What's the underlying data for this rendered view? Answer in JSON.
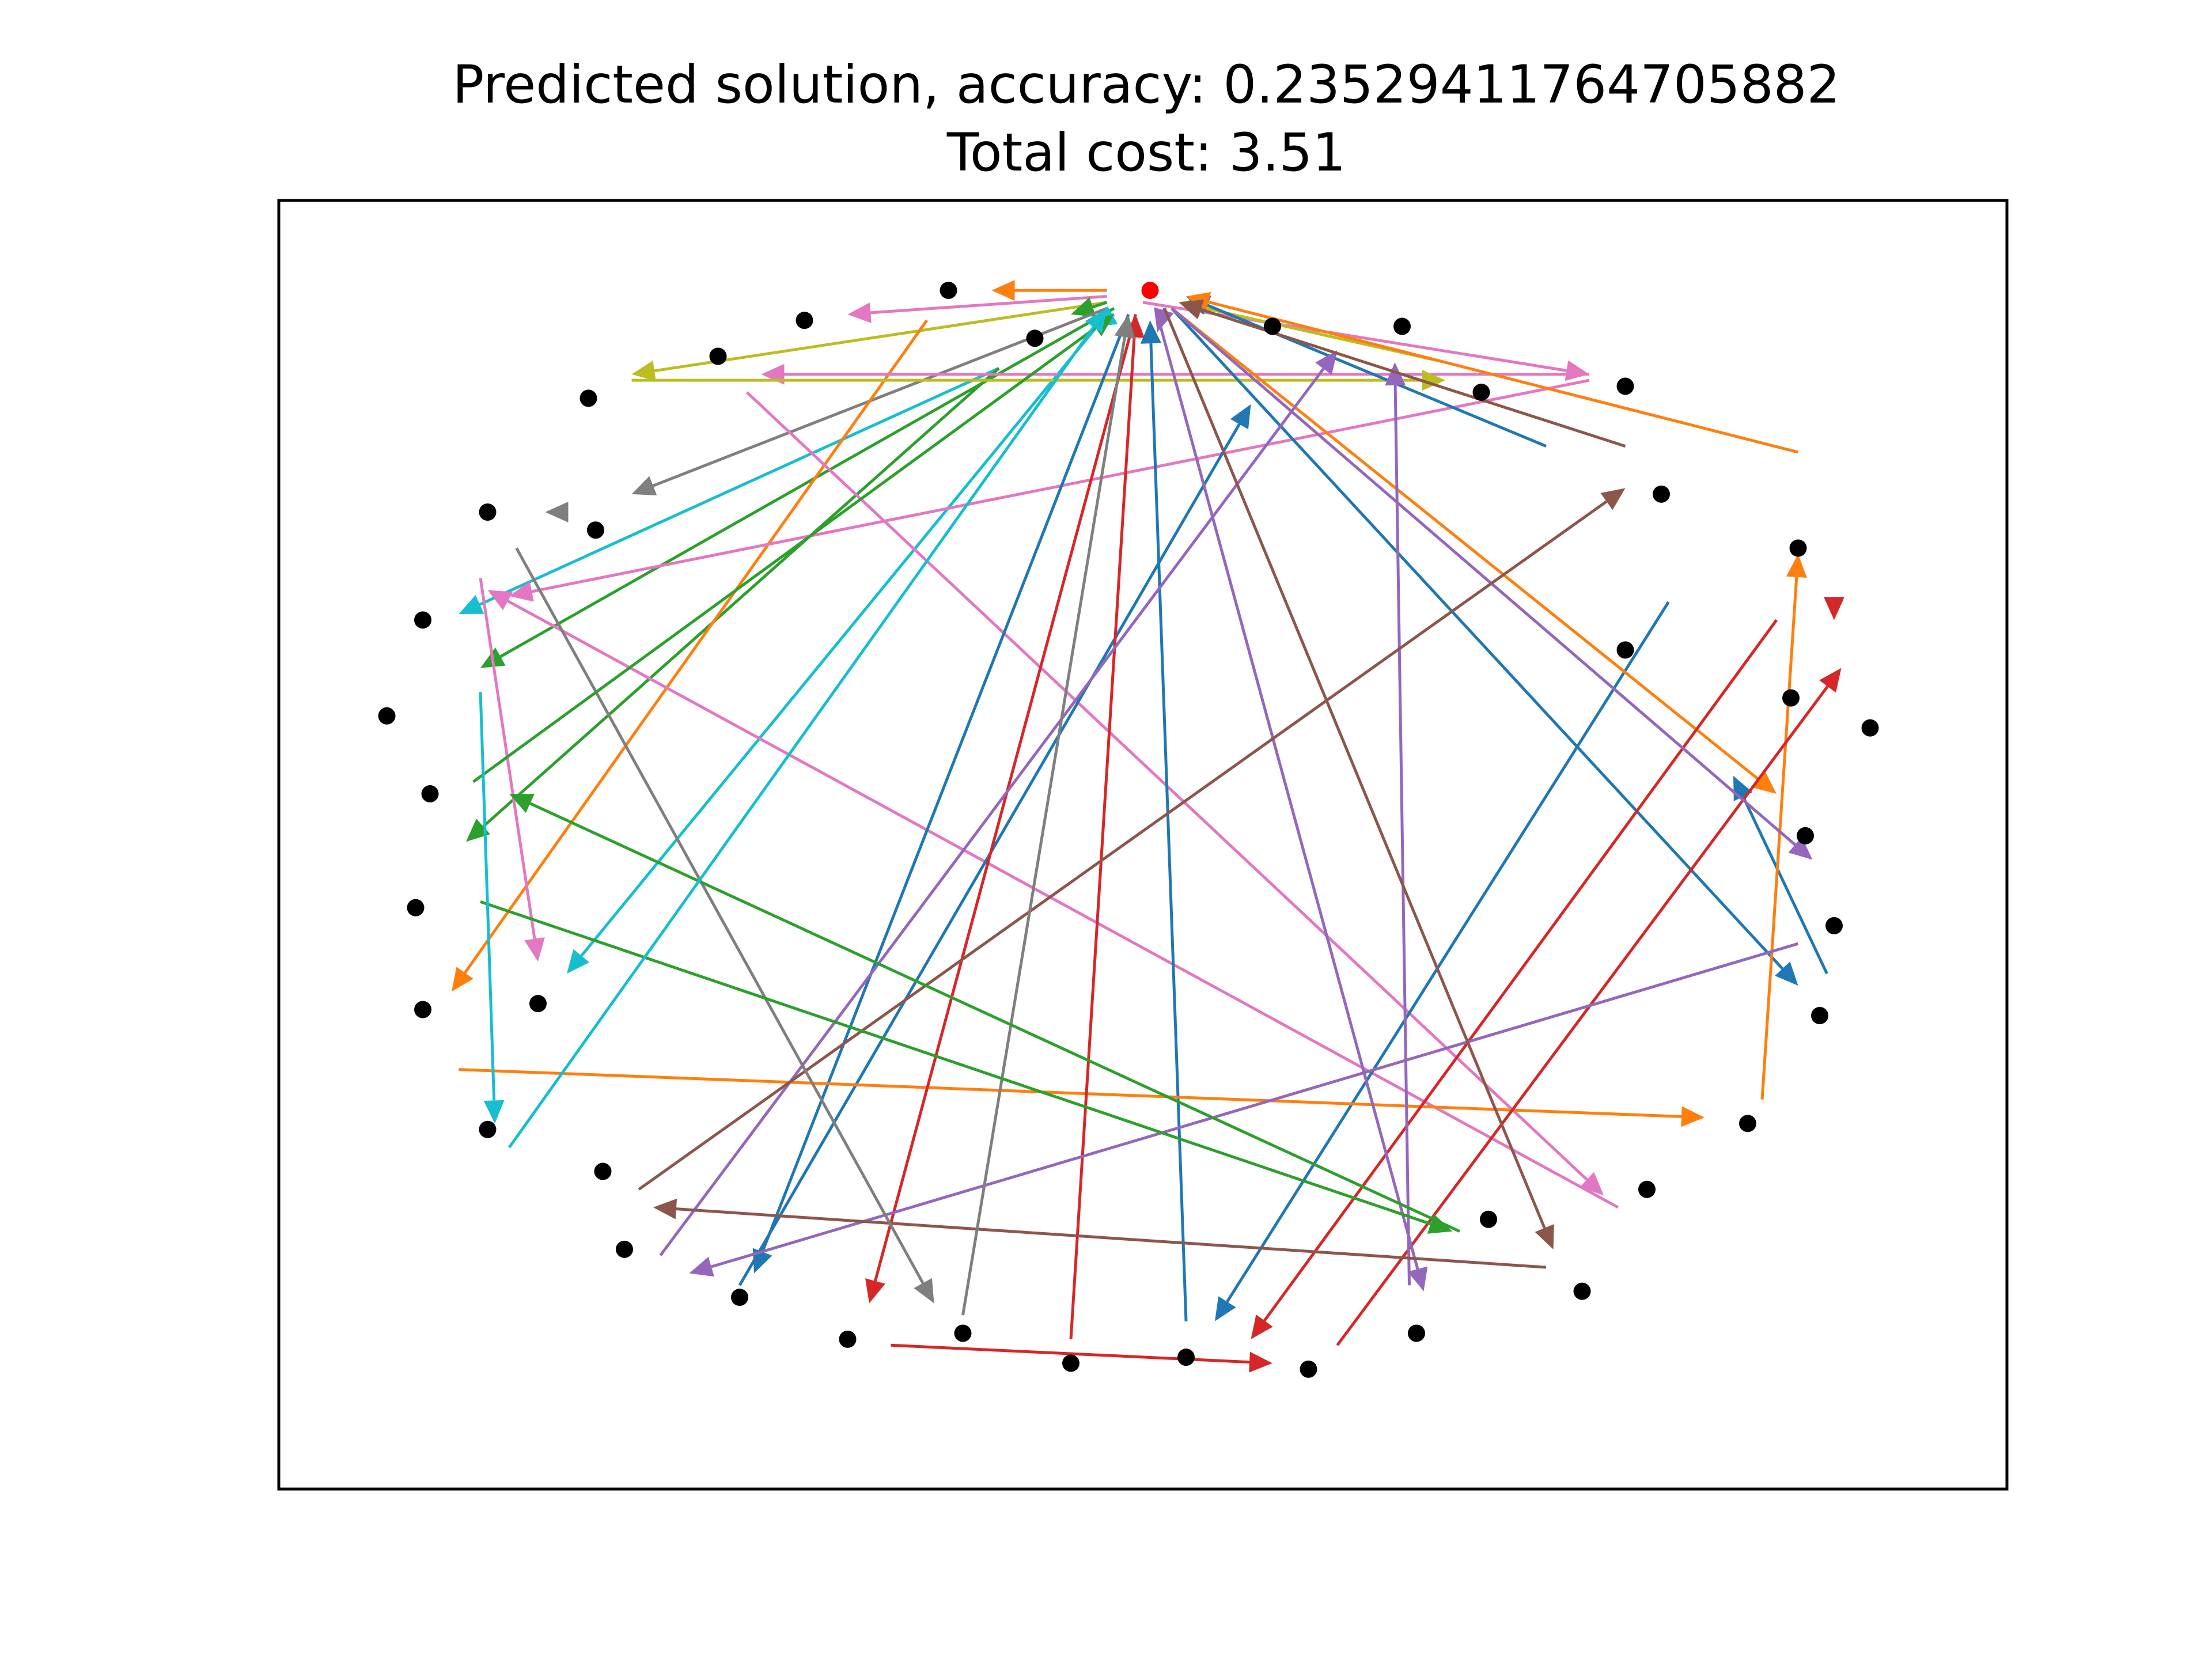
{
  "chart_data": {
    "type": "scatter",
    "title": "Predicted solution, accuracy: 0.23529411764705882",
    "subtitle": "Total cost: 3.51",
    "xlabel": "",
    "ylabel": "",
    "axes_ticks": false,
    "grid": false,
    "xlim": [
      -1.2,
      1.2
    ],
    "ylim": [
      -1.25,
      0.9
    ],
    "depot": {
      "x": 0.01,
      "y": 0.75,
      "color": "#ff0000"
    },
    "nodes": [
      {
        "x": -0.27,
        "y": 0.75
      },
      {
        "x": -0.47,
        "y": 0.7
      },
      {
        "x": -0.15,
        "y": 0.67
      },
      {
        "x": -0.59,
        "y": 0.64
      },
      {
        "x": -0.77,
        "y": 0.57
      },
      {
        "x": 0.18,
        "y": 0.69
      },
      {
        "x": 0.36,
        "y": 0.69
      },
      {
        "x": 0.47,
        "y": 0.58
      },
      {
        "x": 0.67,
        "y": 0.59
      },
      {
        "x": -0.91,
        "y": 0.38
      },
      {
        "x": -0.76,
        "y": 0.35
      },
      {
        "x": 0.72,
        "y": 0.41
      },
      {
        "x": -1.0,
        "y": 0.2
      },
      {
        "x": 0.91,
        "y": 0.32
      },
      {
        "x": 0.67,
        "y": 0.15
      },
      {
        "x": -1.05,
        "y": 0.04
      },
      {
        "x": 0.9,
        "y": 0.07
      },
      {
        "x": 1.01,
        "y": 0.02
      },
      {
        "x": -0.99,
        "y": -0.09
      },
      {
        "x": 0.92,
        "y": -0.16
      },
      {
        "x": -1.01,
        "y": -0.28
      },
      {
        "x": 0.96,
        "y": -0.31
      },
      {
        "x": -1.0,
        "y": -0.45
      },
      {
        "x": -0.84,
        "y": -0.44
      },
      {
        "x": 0.94,
        "y": -0.46
      },
      {
        "x": -0.91,
        "y": -0.65
      },
      {
        "x": 0.84,
        "y": -0.64
      },
      {
        "x": -0.75,
        "y": -0.72
      },
      {
        "x": 0.7,
        "y": -0.75
      },
      {
        "x": -0.72,
        "y": -0.85
      },
      {
        "x": 0.48,
        "y": -0.8
      },
      {
        "x": -0.56,
        "y": -0.93
      },
      {
        "x": 0.61,
        "y": -0.92
      },
      {
        "x": -0.41,
        "y": -1.0
      },
      {
        "x": 0.38,
        "y": -0.99
      },
      {
        "x": -0.25,
        "y": -0.99
      },
      {
        "x": -0.1,
        "y": -1.04
      },
      {
        "x": 0.06,
        "y": -1.03
      },
      {
        "x": 0.23,
        "y": -1.05
      }
    ],
    "routes": [
      {
        "color": "#ff7f0e",
        "x1": -0.05,
        "y1": 0.75,
        "x2": -0.21,
        "y2": 0.75
      },
      {
        "color": "#e377c2",
        "x1": -0.05,
        "y1": 0.74,
        "x2": -0.41,
        "y2": 0.71
      },
      {
        "color": "#bcbd22",
        "x1": -0.05,
        "y1": 0.73,
        "x2": -0.71,
        "y2": 0.61
      },
      {
        "color": "#2ca02c",
        "x1": -0.05,
        "y1": 0.73,
        "x2": -0.1,
        "y2": 0.71
      },
      {
        "color": "#7f7f7f",
        "x1": -0.05,
        "y1": 0.72,
        "x2": -0.71,
        "y2": 0.41
      },
      {
        "color": "#17becf",
        "x1": -0.2,
        "y1": 0.62,
        "x2": -0.95,
        "y2": 0.21
      },
      {
        "color": "#2ca02c",
        "x1": -0.2,
        "y1": 0.62,
        "x2": -0.94,
        "y2": -0.17
      },
      {
        "color": "#2ca02c",
        "x1": -0.04,
        "y1": 0.72,
        "x2": -0.92,
        "y2": 0.12
      },
      {
        "color": "#17becf",
        "x1": -0.05,
        "y1": 0.71,
        "x2": -0.8,
        "y2": -0.39
      },
      {
        "color": "#17becf",
        "x1": -0.04,
        "y1": 0.71,
        "x2": -0.07,
        "y2": 0.69
      },
      {
        "color": "#ff7f0e",
        "x1": -0.3,
        "y1": 0.7,
        "x2": -0.96,
        "y2": -0.42
      },
      {
        "color": "#e377c2",
        "x1": -0.55,
        "y1": 0.58,
        "x2": 0.64,
        "y2": -0.76
      },
      {
        "color": "#e377c2",
        "x1": -0.92,
        "y1": 0.27,
        "x2": -0.84,
        "y2": -0.37
      },
      {
        "color": "#e377c2",
        "x1": 0.62,
        "y1": 0.6,
        "x2": -0.88,
        "y2": 0.24
      },
      {
        "color": "#e377c2",
        "x1": 0.62,
        "y1": 0.61,
        "x2": -0.53,
        "y2": 0.61
      },
      {
        "color": "#e377c2",
        "x1": 0.0,
        "y1": 0.73,
        "x2": 0.62,
        "y2": 0.61
      },
      {
        "color": "#e377c2",
        "x1": 0.66,
        "y1": -0.78,
        "x2": -0.91,
        "y2": 0.25
      },
      {
        "color": "#bcbd22",
        "x1": 0.42,
        "y1": 0.63,
        "x2": 0.05,
        "y2": 0.73
      },
      {
        "color": "#bcbd22",
        "x1": -0.71,
        "y1": 0.6,
        "x2": 0.42,
        "y2": 0.6
      },
      {
        "color": "#1f77b4",
        "x1": 0.56,
        "y1": 0.49,
        "x2": 0.06,
        "y2": 0.74
      },
      {
        "color": "#1f77b4",
        "x1": 0.04,
        "y1": 0.72,
        "x2": 0.91,
        "y2": -0.41
      },
      {
        "color": "#1f77b4",
        "x1": 0.95,
        "y1": -0.39,
        "x2": 0.82,
        "y2": -0.06
      },
      {
        "color": "#1f77b4",
        "x1": -0.02,
        "y1": 0.71,
        "x2": -0.54,
        "y2": -0.89
      },
      {
        "color": "#1f77b4",
        "x1": -0.56,
        "y1": -0.91,
        "x2": 0.15,
        "y2": 0.56
      },
      {
        "color": "#1f77b4",
        "x1": 0.06,
        "y1": -0.97,
        "x2": 0.01,
        "y2": 0.7
      },
      {
        "color": "#1f77b4",
        "x1": 0.73,
        "y1": 0.23,
        "x2": 0.1,
        "y2": -0.97
      },
      {
        "color": "#ff7f0e",
        "x1": 0.91,
        "y1": 0.48,
        "x2": 0.06,
        "y2": 0.74
      },
      {
        "color": "#ff7f0e",
        "x1": 0.04,
        "y1": 0.72,
        "x2": 0.88,
        "y2": -0.09
      },
      {
        "color": "#ff7f0e",
        "x1": 0.86,
        "y1": -0.6,
        "x2": 0.91,
        "y2": 0.31
      },
      {
        "color": "#ff7f0e",
        "x1": -0.95,
        "y1": -0.55,
        "x2": 0.78,
        "y2": -0.63
      },
      {
        "color": "#d62728",
        "x1": -0.01,
        "y1": 0.71,
        "x2": -0.38,
        "y2": -0.94
      },
      {
        "color": "#d62728",
        "x1": -0.1,
        "y1": -1.0,
        "x2": -0.01,
        "y2": 0.71
      },
      {
        "color": "#d62728",
        "x1": 0.88,
        "y1": 0.2,
        "x2": 0.15,
        "y2": -1.0
      },
      {
        "color": "#d62728",
        "x1": -0.35,
        "y1": -1.01,
        "x2": 0.18,
        "y2": -1.04
      },
      {
        "color": "#d62728",
        "x1": 0.27,
        "y1": -1.01,
        "x2": 0.97,
        "y2": 0.12
      },
      {
        "color": "#d62728",
        "x1": 0.96,
        "y1": 0.21,
        "x2": 0.96,
        "y2": 0.2
      },
      {
        "color": "#9467bd",
        "x1": 0.02,
        "y1": 0.71,
        "x2": 0.39,
        "y2": -0.92
      },
      {
        "color": "#9467bd",
        "x1": 0.37,
        "y1": -0.91,
        "x2": 0.35,
        "y2": 0.63
      },
      {
        "color": "#9467bd",
        "x1": -0.67,
        "y1": -0.86,
        "x2": 0.27,
        "y2": 0.65
      },
      {
        "color": "#9467bd",
        "x1": 0.91,
        "y1": -0.34,
        "x2": -0.63,
        "y2": -0.89
      },
      {
        "color": "#9467bd",
        "x1": 0.04,
        "y1": 0.72,
        "x2": 0.93,
        "y2": -0.2
      },
      {
        "color": "#9467bd",
        "x1": 0.03,
        "y1": 0.72,
        "x2": 0.02,
        "y2": 0.68
      },
      {
        "color": "#8c564b",
        "x1": 0.03,
        "y1": 0.72,
        "x2": 0.57,
        "y2": -0.85
      },
      {
        "color": "#8c564b",
        "x1": -0.7,
        "y1": -0.75,
        "x2": 0.67,
        "y2": 0.42
      },
      {
        "color": "#8c564b",
        "x1": 0.56,
        "y1": -0.88,
        "x2": -0.68,
        "y2": -0.78
      },
      {
        "color": "#8c564b",
        "x1": 0.67,
        "y1": 0.49,
        "x2": 0.05,
        "y2": 0.73
      },
      {
        "color": "#7f7f7f",
        "x1": -0.25,
        "y1": -0.96,
        "x2": -0.02,
        "y2": 0.71
      },
      {
        "color": "#7f7f7f",
        "x1": -0.87,
        "y1": 0.32,
        "x2": -0.29,
        "y2": -0.94
      },
      {
        "color": "#7f7f7f",
        "x1": -0.8,
        "y1": 0.38,
        "x2": -0.83,
        "y2": 0.38
      },
      {
        "color": "#2ca02c",
        "x1": -0.92,
        "y1": -0.27,
        "x2": 0.43,
        "y2": -0.82
      },
      {
        "color": "#2ca02c",
        "x1": 0.44,
        "y1": -0.82,
        "x2": -0.88,
        "y2": -0.09
      },
      {
        "color": "#2ca02c",
        "x1": -0.93,
        "y1": -0.07,
        "x2": -0.04,
        "y2": 0.71
      },
      {
        "color": "#17becf",
        "x1": -0.92,
        "y1": 0.08,
        "x2": -0.9,
        "y2": -0.64
      },
      {
        "color": "#17becf",
        "x1": -0.88,
        "y1": -0.68,
        "x2": -0.05,
        "y2": 0.72
      }
    ]
  }
}
